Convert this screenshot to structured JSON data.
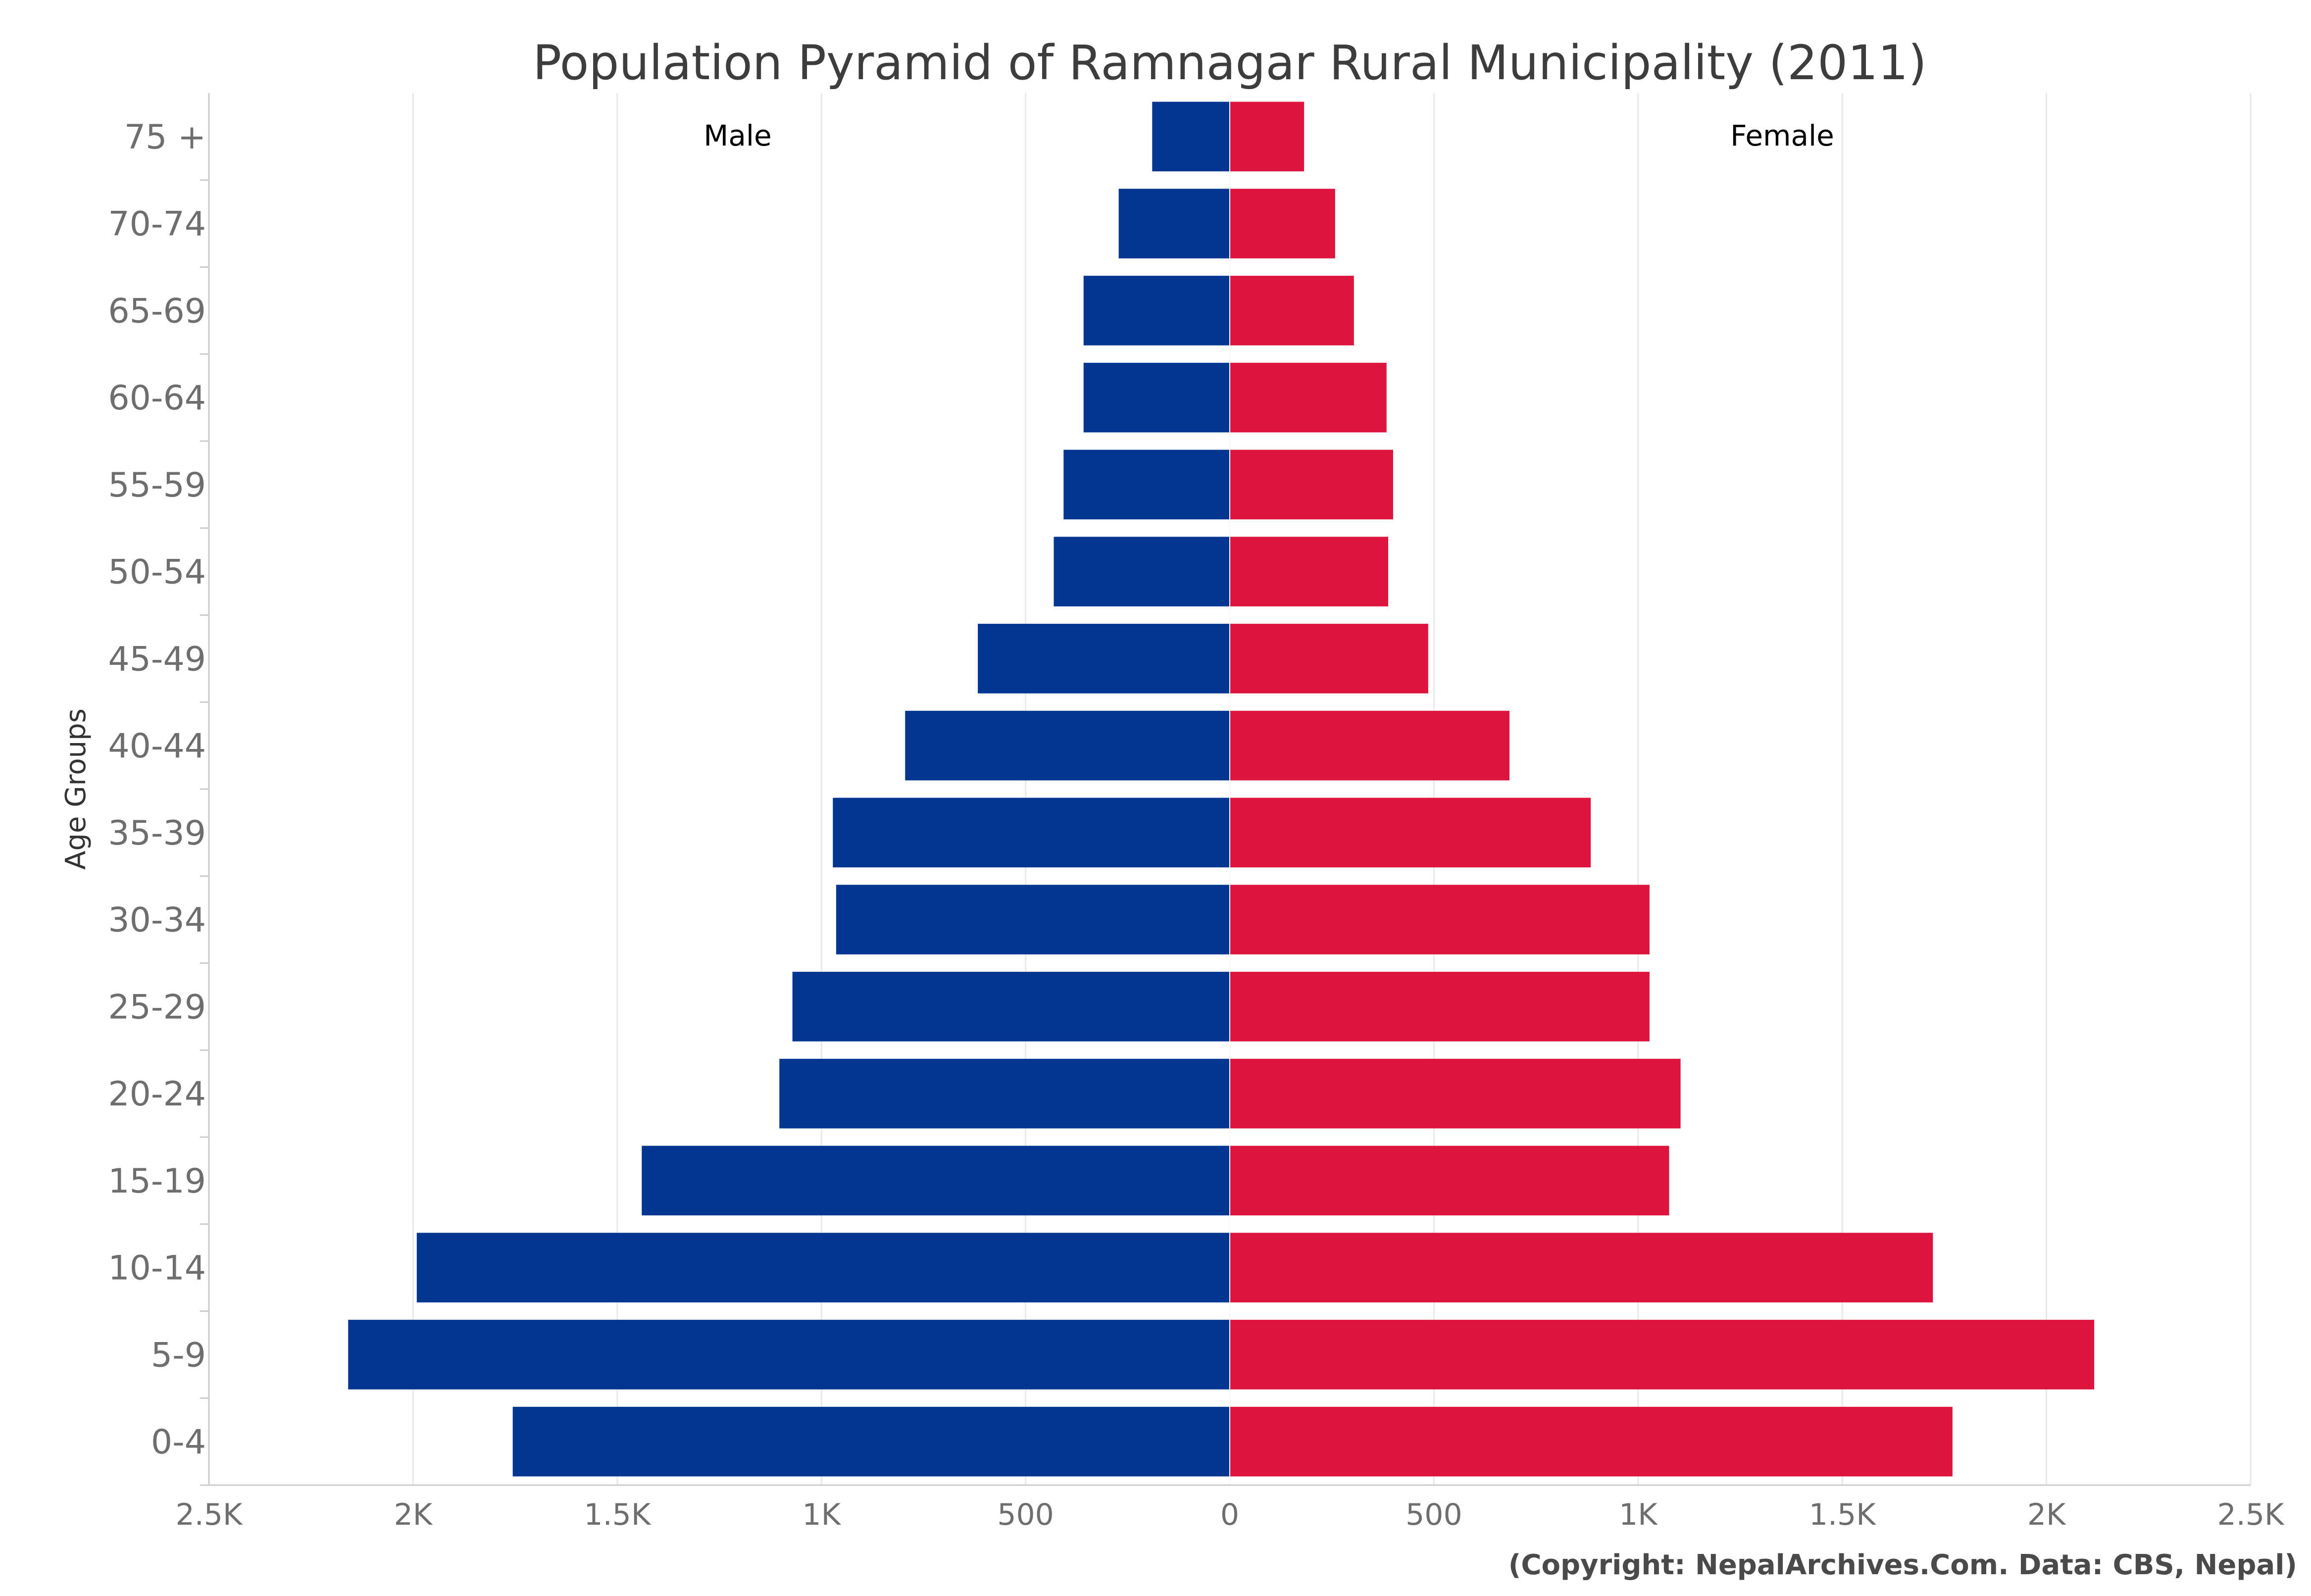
{
  "chart_data": {
    "type": "bar",
    "orientation": "horizontal-diverging",
    "title": "Population Pyramid of Ramnagar Rural Municipality (2011)",
    "ylabel": "Age Groups",
    "xlabel": "",
    "categories": [
      "75 +",
      "70-74",
      "65-69",
      "60-64",
      "55-59",
      "50-54",
      "45-49",
      "40-44",
      "35-39",
      "30-34",
      "25-29",
      "20-24",
      "15-19",
      "10-14",
      "5-9",
      "0-4"
    ],
    "series": [
      {
        "name": "Male",
        "color": "#023691",
        "values": [
          190,
          272,
          358,
          358,
          407,
          431,
          617,
          795,
          972,
          964,
          1071,
          1103,
          1440,
          1991,
          2159,
          1756
        ]
      },
      {
        "name": "Female",
        "color": "#dd143d",
        "values": [
          182,
          258,
          304,
          384,
          400,
          388,
          486,
          685,
          884,
          1028,
          1028,
          1104,
          1076,
          1722,
          2117,
          1770
        ]
      }
    ],
    "xlim": [
      -2500,
      2500
    ],
    "x_ticks": [
      -2500,
      -2000,
      -1500,
      -1000,
      -500,
      0,
      500,
      1000,
      1500,
      2000,
      2500
    ],
    "x_tick_labels": [
      "2.5K",
      "2K",
      "1.5K",
      "1K",
      "500",
      "0",
      "500",
      "1K",
      "1.5K",
      "2K",
      "2.5K"
    ],
    "grid": true,
    "legend": "inside-top",
    "credit": "(Copyright: NepalArchives.Com. Data: CBS, Nepal)"
  }
}
